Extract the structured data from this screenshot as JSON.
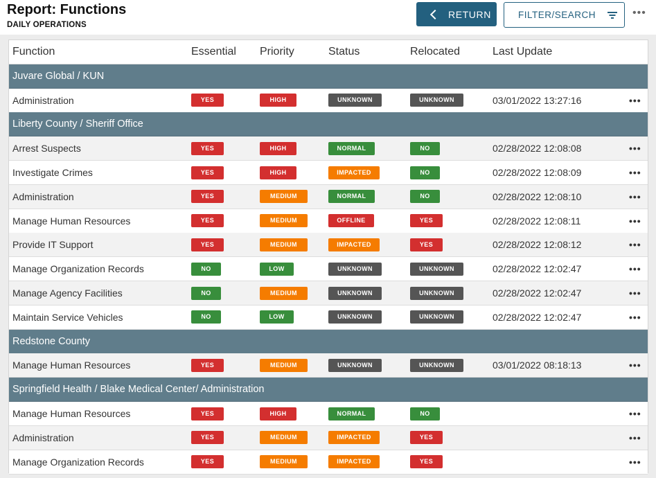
{
  "header": {
    "title": "Report: Functions",
    "subtitle": "DAILY OPERATIONS",
    "return_label": "RETURN",
    "filter_label": "FILTER/SEARCH",
    "more": "•••"
  },
  "table": {
    "columns": [
      "Function",
      "Essential",
      "Priority",
      "Status",
      "Relocated",
      "Last Update"
    ],
    "groups": [
      {
        "name": "Juvare Global / KUN",
        "rows": [
          {
            "function": "Administration",
            "essential": "YES",
            "priority": "HIGH",
            "status": "UNKNOWN",
            "relocated": "UNKNOWN",
            "updated": "03/01/2022 13:27:16"
          }
        ]
      },
      {
        "name": "Liberty County / Sheriff Office",
        "rows": [
          {
            "function": "Arrest Suspects",
            "essential": "YES",
            "priority": "HIGH",
            "status": "NORMAL",
            "relocated": "NO",
            "updated": "02/28/2022 12:08:08"
          },
          {
            "function": "Investigate Crimes",
            "essential": "YES",
            "priority": "HIGH",
            "status": "IMPACTED",
            "relocated": "NO",
            "updated": "02/28/2022 12:08:09"
          },
          {
            "function": "Administration",
            "essential": "YES",
            "priority": "MEDIUM",
            "status": "NORMAL",
            "relocated": "NO",
            "updated": "02/28/2022 12:08:10"
          },
          {
            "function": "Manage Human Resources",
            "essential": "YES",
            "priority": "MEDIUM",
            "status": "OFFLINE",
            "relocated": "YES",
            "updated": "02/28/2022 12:08:11"
          },
          {
            "function": "Provide IT Support",
            "essential": "YES",
            "priority": "MEDIUM",
            "status": "IMPACTED",
            "relocated": "YES",
            "updated": "02/28/2022 12:08:12"
          },
          {
            "function": "Manage Organization Records",
            "essential": "NO",
            "priority": "LOW",
            "status": "UNKNOWN",
            "relocated": "UNKNOWN",
            "updated": "02/28/2022 12:02:47"
          },
          {
            "function": "Manage Agency Facilities",
            "essential": "NO",
            "priority": "MEDIUM",
            "status": "UNKNOWN",
            "relocated": "UNKNOWN",
            "updated": "02/28/2022 12:02:47"
          },
          {
            "function": "Maintain Service Vehicles",
            "essential": "NO",
            "priority": "LOW",
            "status": "UNKNOWN",
            "relocated": "UNKNOWN",
            "updated": "02/28/2022 12:02:47"
          }
        ]
      },
      {
        "name": "Redstone County",
        "rows": [
          {
            "function": "Manage Human Resources",
            "essential": "YES",
            "priority": "MEDIUM",
            "status": "UNKNOWN",
            "relocated": "UNKNOWN",
            "updated": "03/01/2022 08:18:13"
          }
        ]
      },
      {
        "name": "Springfield Health / Blake Medical Center/ Administration",
        "rows": [
          {
            "function": "Manage Human Resources",
            "essential": "YES",
            "priority": "HIGH",
            "status": "NORMAL",
            "relocated": "NO",
            "updated": ""
          },
          {
            "function": "Administration",
            "essential": "YES",
            "priority": "MEDIUM",
            "status": "IMPACTED",
            "relocated": "YES",
            "updated": ""
          },
          {
            "function": "Manage Organization Records",
            "essential": "YES",
            "priority": "MEDIUM",
            "status": "IMPACTED",
            "relocated": "YES",
            "updated": ""
          }
        ]
      }
    ]
  },
  "colors": {
    "primary": "#23607f",
    "group_row": "#607d8b",
    "red": "#d32f2f",
    "green": "#388e3c",
    "orange": "#f57c00",
    "gray": "#555555"
  }
}
